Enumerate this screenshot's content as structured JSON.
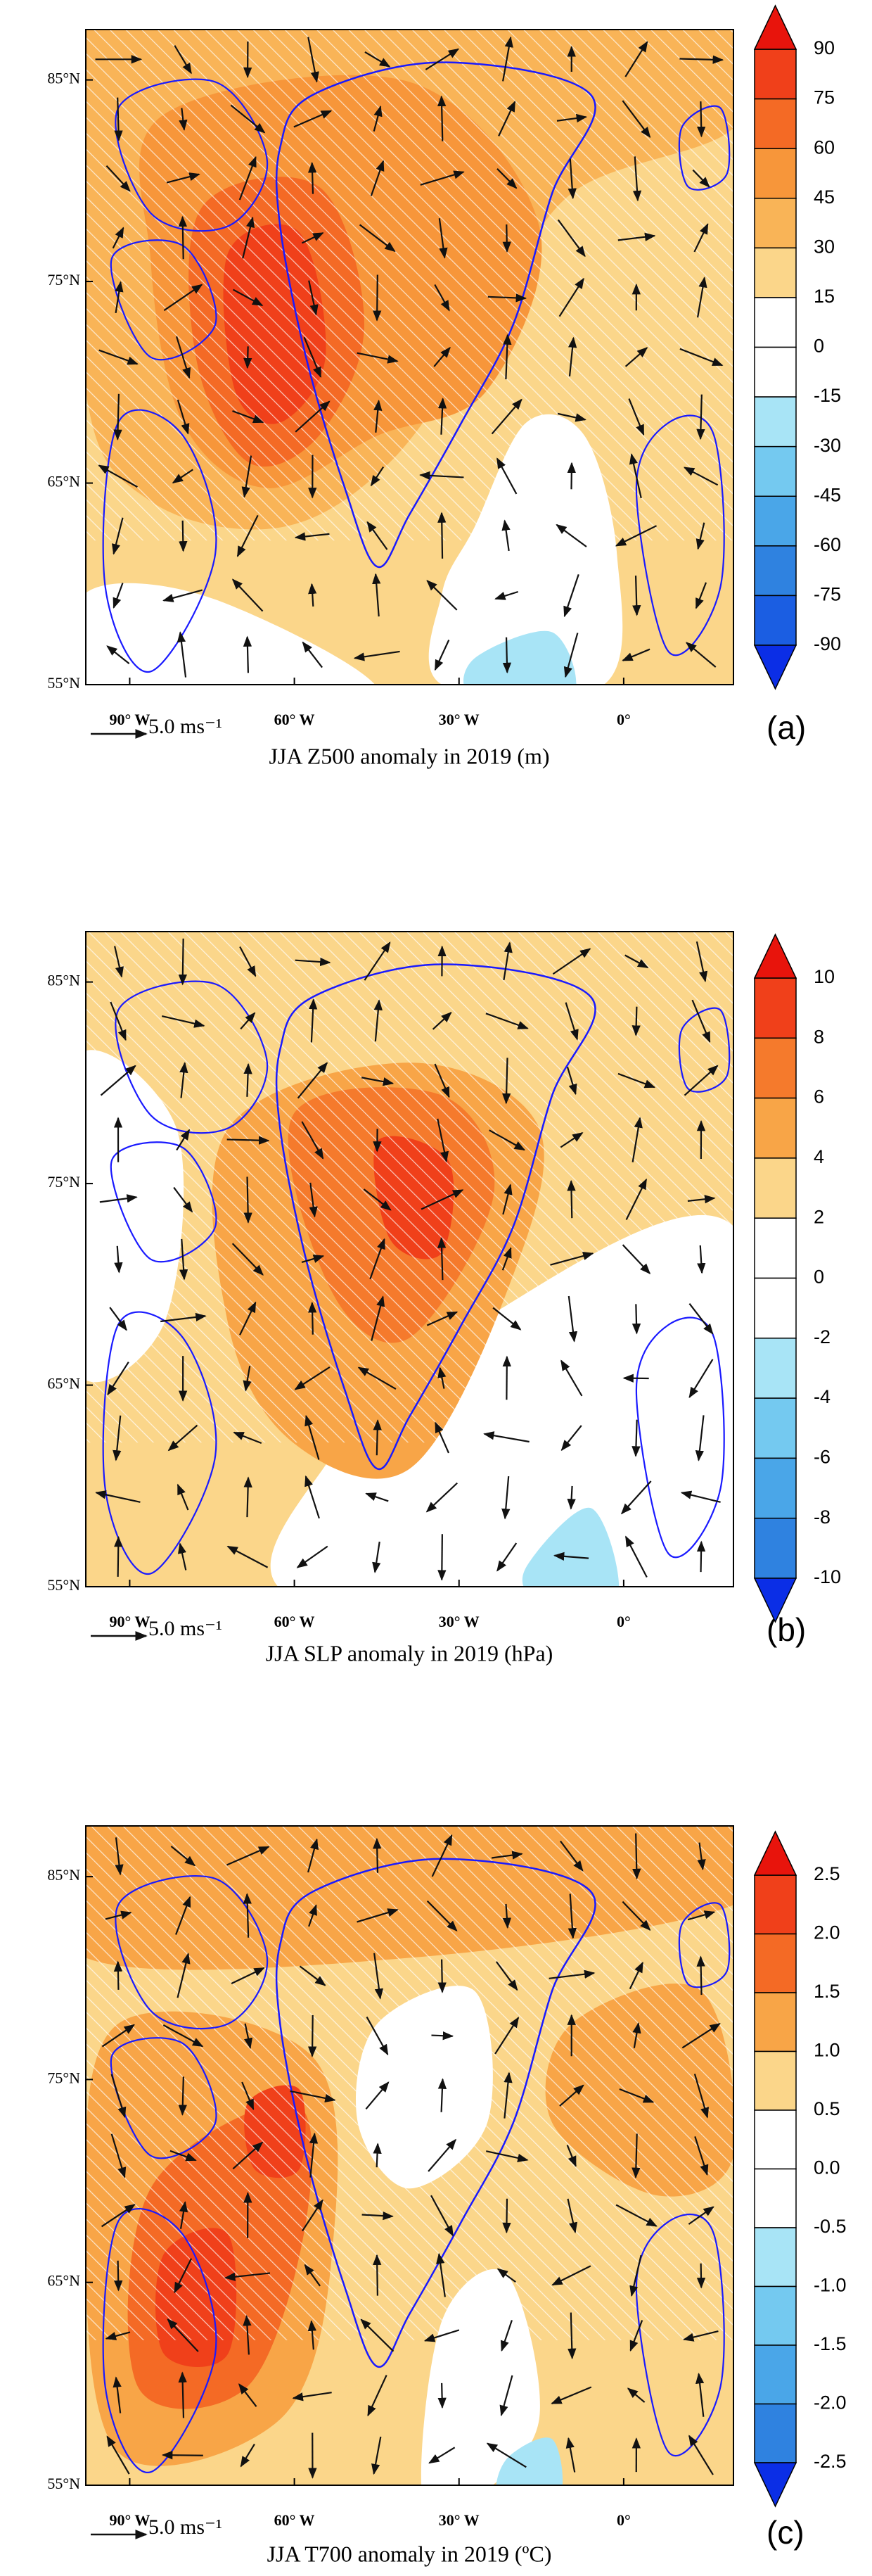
{
  "panels": [
    {
      "label": "(a)",
      "title": "JJA Z500 anomaly in 2019 (m)",
      "reference_vector": "5.0 ms⁻¹",
      "lat_range": [
        55,
        87.5
      ],
      "lon_range": [
        -98,
        20
      ],
      "lat_ticks": [
        {
          "value": 85,
          "label": "85°N"
        },
        {
          "value": 75,
          "label": "75°N"
        },
        {
          "value": 65,
          "label": "65°N"
        },
        {
          "value": 55,
          "label": "55°N"
        }
      ],
      "lon_ticks": [
        {
          "value": -90,
          "label": "90° W"
        },
        {
          "value": -60,
          "label": "60° W"
        },
        {
          "value": -30,
          "label": "30° W"
        },
        {
          "value": 0,
          "label": "0°"
        }
      ],
      "colorbar": {
        "ticks": [
          90,
          75,
          60,
          45,
          30,
          15,
          0,
          -15,
          -30,
          -45,
          -60,
          -75,
          -90
        ],
        "colors": [
          "#f0401a",
          "#f46a25",
          "#f7963a",
          "#f9b457",
          "#fbd68a",
          "#ffffff",
          "#ffffff",
          "#a8e4f6",
          "#74c9f0",
          "#4aa6e8",
          "#2f82e0",
          "#1b5ee2"
        ],
        "over_color": "#e8140c",
        "under_color": "#0b2ee6"
      }
    },
    {
      "label": "(b)",
      "title": "JJA SLP anomaly in 2019 (hPa)",
      "reference_vector": "5.0 ms⁻¹",
      "lat_range": [
        55,
        87.5
      ],
      "lon_range": [
        -98,
        20
      ],
      "lat_ticks": [
        {
          "value": 85,
          "label": "85°N"
        },
        {
          "value": 75,
          "label": "75°N"
        },
        {
          "value": 65,
          "label": "65°N"
        },
        {
          "value": 55,
          "label": "55°N"
        }
      ],
      "lon_ticks": [
        {
          "value": -90,
          "label": "90° W"
        },
        {
          "value": -60,
          "label": "60° W"
        },
        {
          "value": -30,
          "label": "30° W"
        },
        {
          "value": 0,
          "label": "0°"
        }
      ],
      "colorbar": {
        "ticks": [
          10,
          8,
          6,
          4,
          2,
          0,
          -2,
          -4,
          -6,
          -8,
          -10
        ],
        "colors": [
          "#f0401a",
          "#f57a2c",
          "#f8a547",
          "#fbd68a",
          "#ffffff",
          "#ffffff",
          "#a8e4f6",
          "#74c9f0",
          "#4aa6e8",
          "#2f82e0"
        ],
        "over_color": "#e8140c",
        "under_color": "#0b2ee6"
      }
    },
    {
      "label": "(c)",
      "title": "JJA T700 anomaly in 2019 (ºC)",
      "reference_vector": "5.0 ms⁻¹",
      "lat_range": [
        55,
        87.5
      ],
      "lon_range": [
        -98,
        20
      ],
      "lat_ticks": [
        {
          "value": 85,
          "label": "85°N"
        },
        {
          "value": 75,
          "label": "75°N"
        },
        {
          "value": 65,
          "label": "65°N"
        },
        {
          "value": 55,
          "label": "55°N"
        }
      ],
      "lon_ticks": [
        {
          "value": -90,
          "label": "90° W"
        },
        {
          "value": -60,
          "label": "60° W"
        },
        {
          "value": -30,
          "label": "30° W"
        },
        {
          "value": 0,
          "label": "0°"
        }
      ],
      "colorbar": {
        "ticks": [
          2.5,
          {
            "value": 2,
            "label": "2.0"
          },
          1.5,
          {
            "value": 1,
            "label": "1.0"
          },
          0.5,
          {
            "value": 0,
            "label": "0.0"
          },
          -0.5,
          {
            "value": -1,
            "label": "-1.0"
          },
          -1.5,
          {
            "value": -2,
            "label": "-2.0"
          },
          -2.5
        ],
        "colors": [
          "#f0401a",
          "#f46a25",
          "#f8a547",
          "#fbd68a",
          "#ffffff",
          "#ffffff",
          "#a8e4f6",
          "#74c9f0",
          "#4aa6e8",
          "#2f82e0"
        ],
        "over_color": "#e8140c",
        "under_color": "#0b2ee6"
      }
    }
  ]
}
